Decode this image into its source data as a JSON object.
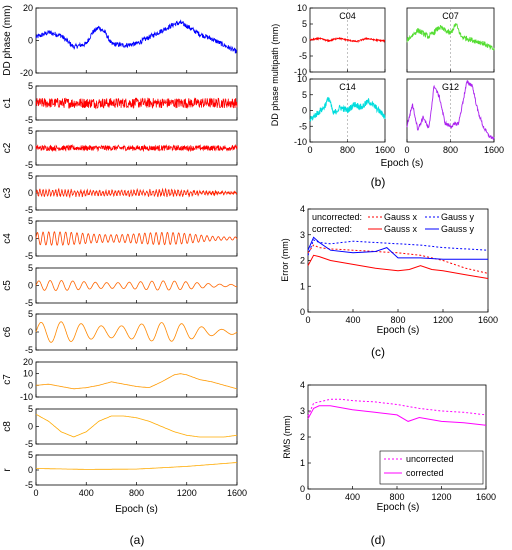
{
  "panel_labels": [
    "(a)",
    "(b)",
    "(c)",
    "(d)"
  ],
  "chart_data": [
    {
      "id": "a",
      "type": "line",
      "xlabel": "Epoch (s)",
      "xlim": [
        0,
        1600
      ],
      "xticks": [
        "0",
        "400",
        "800",
        "1200",
        "1600"
      ],
      "subplots": [
        {
          "ylabel": "DD phase (mm)",
          "ylim": [
            -20,
            20
          ],
          "yticks": [
            "20",
            "0",
            "-20"
          ],
          "color": "#0000ff",
          "x": [
            0,
            100,
            200,
            300,
            400,
            450,
            500,
            550,
            600,
            700,
            800,
            900,
            1000,
            1100,
            1150,
            1200,
            1300,
            1400,
            1500,
            1600
          ],
          "y": [
            2,
            5,
            3,
            -4,
            -2,
            5,
            8,
            5,
            -2,
            -3,
            -2,
            2,
            6,
            10,
            11,
            9,
            4,
            1,
            -3,
            -7
          ],
          "noise": 1.5
        },
        {
          "ylabel": "c1",
          "ylim": [
            -5,
            5
          ],
          "yticks": [
            "5",
            "0",
            "-5"
          ],
          "color": "#ff0000",
          "x": [
            0,
            1600
          ],
          "y": [
            0,
            0
          ],
          "noise": 1.5
        },
        {
          "ylabel": "c2",
          "ylim": [
            -5,
            5
          ],
          "yticks": [
            "5",
            "0",
            "-5"
          ],
          "color": "#ff0000",
          "x": [
            0,
            1600
          ],
          "y": [
            0,
            0
          ],
          "noise": 0.8
        },
        {
          "ylabel": "c3",
          "ylim": [
            -5,
            5
          ],
          "yticks": [
            "5",
            "0",
            "-5"
          ],
          "color": "#ff2200",
          "x": [
            0,
            1600
          ],
          "y": [
            0,
            0
          ],
          "noise": 0.4,
          "osc_amp": 1.0,
          "osc_period": 25
        },
        {
          "ylabel": "c4",
          "ylim": [
            -5,
            5
          ],
          "yticks": [
            "5",
            "0",
            "-5"
          ],
          "color": "#ff4400",
          "x": [
            0,
            1600
          ],
          "y": [
            0,
            0
          ],
          "osc_amp": 2,
          "osc_period": 45
        },
        {
          "ylabel": "c5",
          "ylim": [
            -5,
            5
          ],
          "yticks": [
            "5",
            "0",
            "-5"
          ],
          "color": "#ff6600",
          "x": [
            0,
            1600
          ],
          "y": [
            0,
            0
          ],
          "osc_amp": 1.5,
          "osc_period": 90
        },
        {
          "ylabel": "c6",
          "ylim": [
            -5,
            5
          ],
          "yticks": [
            "5",
            "0",
            "-5"
          ],
          "color": "#ff8800",
          "x": [
            0,
            1600
          ],
          "y": [
            0,
            0
          ],
          "osc_amp": 3,
          "osc_period": 160
        },
        {
          "ylabel": "c7",
          "ylim": [
            -10,
            20
          ],
          "yticks": [
            "20",
            "10",
            "0",
            "-10"
          ],
          "color": "#ff9900",
          "x": [
            0,
            100,
            200,
            300,
            400,
            500,
            600,
            700,
            800,
            900,
            1000,
            1100,
            1150,
            1200,
            1300,
            1400,
            1500,
            1600
          ],
          "y": [
            0,
            1,
            -1,
            -3,
            -2,
            0,
            3,
            1,
            -1,
            -2,
            3,
            9,
            10,
            9,
            5,
            3,
            0,
            -3
          ]
        },
        {
          "ylabel": "c8",
          "ylim": [
            -5,
            5
          ],
          "yticks": [
            "5",
            "0",
            "-5"
          ],
          "color": "#ffaa00",
          "x": [
            0,
            100,
            200,
            300,
            400,
            500,
            600,
            700,
            800,
            900,
            1000,
            1100,
            1200,
            1300,
            1400,
            1500,
            1600
          ],
          "y": [
            3.5,
            1.5,
            -1.5,
            -3,
            -1.5,
            1.5,
            3,
            3,
            2.5,
            1.5,
            0,
            -1.5,
            -2.5,
            -3,
            -3,
            -3,
            -2.5
          ]
        },
        {
          "ylabel": "r",
          "ylim": [
            -5,
            5
          ],
          "yticks": [
            "5",
            "0",
            "-5"
          ],
          "color": "#ffaa00",
          "x": [
            0,
            400,
            800,
            1200,
            1600
          ],
          "y": [
            0.5,
            0.2,
            0.3,
            1.2,
            2.5
          ]
        }
      ]
    },
    {
      "id": "b",
      "type": "line",
      "ylabel": "DD phase multipath (mm)",
      "xlabel": "Epoch (s)",
      "xlim": [
        0,
        1600
      ],
      "ylim": [
        -10,
        10
      ],
      "yticks": [
        "10",
        "5",
        "0",
        "-5",
        "-10"
      ],
      "xticks": [
        "0",
        "800",
        "1600"
      ],
      "subplots": [
        {
          "name": "C04",
          "color": "#ff0000",
          "x": [
            0,
            200,
            400,
            600,
            800,
            1000,
            1200,
            1400,
            1600
          ],
          "y": [
            0,
            0.5,
            -0.3,
            0.6,
            0,
            -0.5,
            0.5,
            0,
            -0.3
          ],
          "noise": 0.2
        },
        {
          "name": "C07",
          "color": "#55dd33",
          "x": [
            0,
            200,
            400,
            600,
            800,
            900,
            1000,
            1200,
            1400,
            1600
          ],
          "y": [
            0,
            3,
            1,
            4,
            2,
            5,
            1,
            0,
            -1,
            -3
          ],
          "noise": 0.8
        },
        {
          "name": "C14",
          "color": "#00dddd",
          "x": [
            0,
            150,
            300,
            400,
            500,
            650,
            800,
            950,
            1100,
            1250,
            1400,
            1600
          ],
          "y": [
            -3,
            -1,
            1,
            4,
            -1,
            1,
            0,
            2,
            1,
            3,
            1,
            -2
          ],
          "noise": 1.0
        },
        {
          "name": "G12",
          "color": "#aa22ee",
          "x": [
            0,
            100,
            200,
            300,
            400,
            500,
            600,
            700,
            800,
            950,
            1100,
            1200,
            1300,
            1400,
            1500,
            1600
          ],
          "y": [
            -5,
            2,
            -6,
            -2,
            -6,
            8,
            4,
            -4,
            -5,
            -4,
            9,
            8,
            0,
            -5,
            -8,
            -9
          ],
          "noise": 0.6
        }
      ]
    },
    {
      "id": "c",
      "type": "line",
      "ylabel": "Error (mm)",
      "xlabel": "Epoch (s)",
      "xlim": [
        0,
        1600
      ],
      "ylim": [
        0,
        4
      ],
      "yticks": [
        "4",
        "3",
        "2",
        "1",
        "0"
      ],
      "xticks": [
        "0",
        "400",
        "800",
        "1200",
        "1600"
      ],
      "legend_rows": [
        "uncorrected:",
        "corrected:"
      ],
      "series": [
        {
          "name": "Gauss x",
          "group": "uncorrected",
          "color": "#ff0000",
          "dash": "2,2",
          "x": [
            0,
            50,
            100,
            200,
            400,
            600,
            800,
            1000,
            1200,
            1400,
            1600
          ],
          "y": [
            2.3,
            2.6,
            2.5,
            2.45,
            2.4,
            2.35,
            2.3,
            2.2,
            2.0,
            1.7,
            1.5
          ]
        },
        {
          "name": "Gauss y",
          "group": "uncorrected",
          "color": "#0000ff",
          "dash": "2,2",
          "x": [
            0,
            50,
            100,
            200,
            400,
            600,
            800,
            1000,
            1200,
            1400,
            1600
          ],
          "y": [
            2.2,
            2.8,
            2.7,
            2.65,
            2.75,
            2.7,
            2.65,
            2.6,
            2.5,
            2.45,
            2.4
          ]
        },
        {
          "name": "Gauss x",
          "group": "corrected",
          "color": "#ff0000",
          "dash": "",
          "x": [
            0,
            50,
            100,
            200,
            400,
            600,
            800,
            900,
            1000,
            1100,
            1200,
            1400,
            1600
          ],
          "y": [
            1.8,
            2.2,
            2.15,
            2.0,
            1.85,
            1.7,
            1.6,
            1.65,
            1.8,
            1.65,
            1.6,
            1.45,
            1.3
          ]
        },
        {
          "name": "Gauss y",
          "group": "corrected",
          "color": "#0000ff",
          "dash": "",
          "x": [
            0,
            50,
            100,
            200,
            400,
            600,
            700,
            800,
            1000,
            1200,
            1400,
            1600
          ],
          "y": [
            2.4,
            2.9,
            2.7,
            2.4,
            2.3,
            2.35,
            2.5,
            2.1,
            2.1,
            2.05,
            2.05,
            2.05
          ]
        }
      ]
    },
    {
      "id": "d",
      "type": "line",
      "ylabel": "RMS (mm)",
      "xlabel": "Epoch (s)",
      "xlim": [
        0,
        1600
      ],
      "ylim": [
        0,
        4
      ],
      "yticks": [
        "4",
        "3",
        "2",
        "1",
        "0"
      ],
      "xticks": [
        "0",
        "400",
        "800",
        "1200",
        "1600"
      ],
      "legend": "bottom-right",
      "series": [
        {
          "name": "uncorrected",
          "color": "#ff00ff",
          "dash": "2,2",
          "x": [
            0,
            50,
            100,
            200,
            300,
            400,
            600,
            800,
            1000,
            1200,
            1400,
            1600
          ],
          "y": [
            2.8,
            3.3,
            3.35,
            3.45,
            3.45,
            3.4,
            3.35,
            3.25,
            3.1,
            3.0,
            2.95,
            2.85
          ]
        },
        {
          "name": "corrected",
          "color": "#ff00ff",
          "dash": "",
          "x": [
            0,
            50,
            100,
            200,
            400,
            600,
            800,
            900,
            1000,
            1200,
            1400,
            1600
          ],
          "y": [
            2.7,
            3.1,
            3.2,
            3.2,
            3.05,
            2.95,
            2.85,
            2.6,
            2.75,
            2.6,
            2.55,
            2.45
          ]
        }
      ]
    }
  ]
}
